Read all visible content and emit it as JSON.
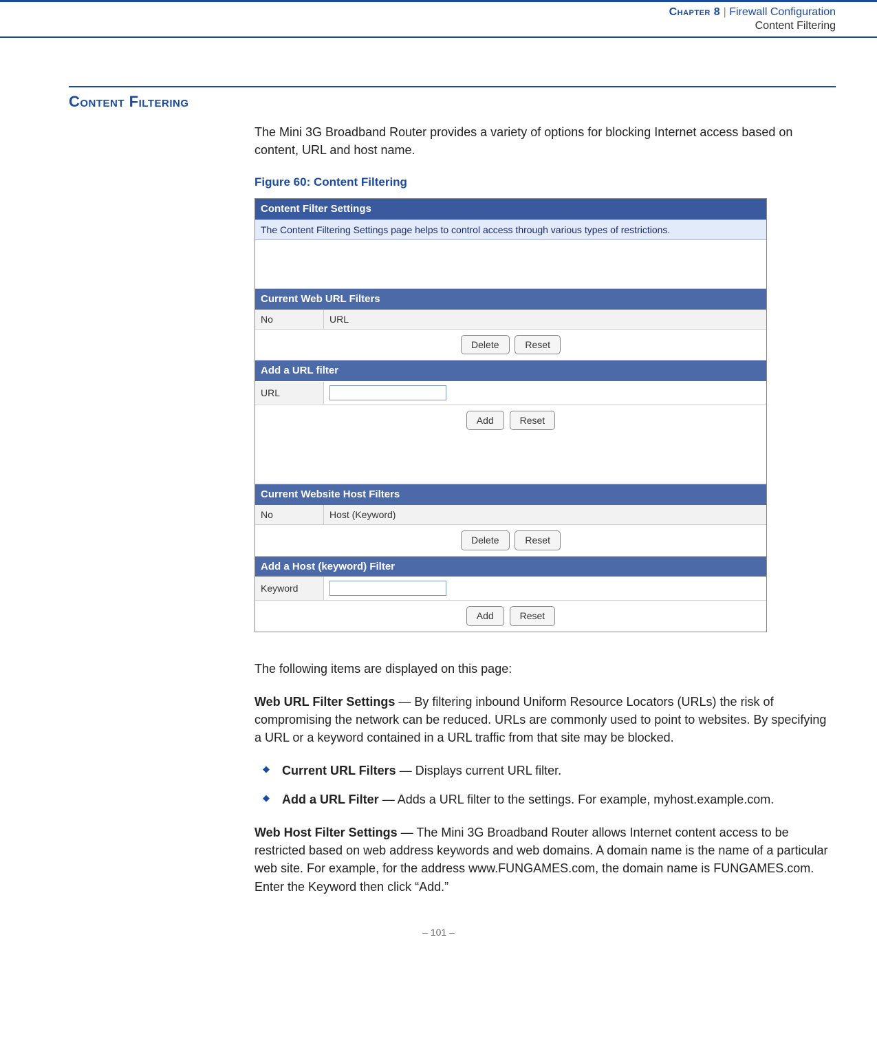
{
  "header": {
    "chapter_label": "Chapter 8",
    "separator": "|",
    "topic": "Firewall Configuration",
    "subtopic": "Content Filtering"
  },
  "section": {
    "heading": "Content Filtering",
    "intro": "The Mini 3G Broadband Router provides a variety of options for blocking Internet access based on content, URL and host name.",
    "figure_caption": "Figure 60:  Content Filtering"
  },
  "screenshot": {
    "title_bar": "Content Filter Settings",
    "description": "The Content Filtering Settings page helps to control access through various types of restrictions.",
    "url_filters": {
      "section_title": "Current Web URL Filters",
      "col_no": "No",
      "col_url": "URL",
      "btn_delete": "Delete",
      "btn_reset": "Reset"
    },
    "add_url": {
      "section_title": "Add a URL filter",
      "label": "URL",
      "btn_add": "Add",
      "btn_reset": "Reset"
    },
    "host_filters": {
      "section_title": "Current Website Host Filters",
      "col_no": "No",
      "col_host": "Host (Keyword)",
      "btn_delete": "Delete",
      "btn_reset": "Reset"
    },
    "add_host": {
      "section_title": "Add a Host (keyword) Filter",
      "label": "Keyword",
      "btn_add": "Add",
      "btn_reset": "Reset"
    }
  },
  "explain": {
    "intro": "The following items are displayed on this page:",
    "para1_lead": "Web URL Filter Settings",
    "para1_body": " — By filtering inbound Uniform Resource Locators (URLs) the risk of compromising the network can be reduced. URLs are commonly used to point to websites. By specifying a URL or a keyword contained in a URL traffic from that site may be blocked.",
    "bullet1_lead": "Current URL Filters",
    "bullet1_body": " — Displays current URL filter.",
    "bullet2_lead": "Add a URL Filter",
    "bullet2_body": " — Adds a URL filter to the settings. For example, myhost.example.com.",
    "para2_lead": "Web Host Filter Settings",
    "para2_body": " — The Mini 3G Broadband Router allows Internet content access to be restricted based on web address keywords and web domains. A domain name is the name of a particular web site. For example, for the address www.FUNGAMES.com, the domain name is FUNGAMES.com. Enter the Keyword then click “Add.”"
  },
  "footer": {
    "page": "–  101  –"
  }
}
